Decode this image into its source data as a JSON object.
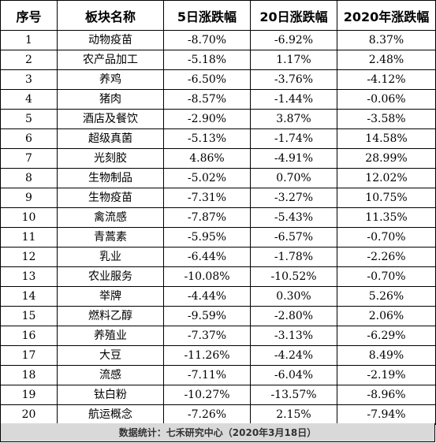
{
  "table": {
    "headers": [
      "序号",
      "板块名称",
      "5日涨跌幅",
      "20日涨跌幅",
      "2020年涨跌幅"
    ],
    "rows": [
      [
        "1",
        "动物疫苗",
        "-8.70%",
        "-6.92%",
        "8.37%"
      ],
      [
        "2",
        "农产品加工",
        "-5.18%",
        "1.17%",
        "2.48%"
      ],
      [
        "3",
        "养鸡",
        "-6.50%",
        "-3.76%",
        "-4.12%"
      ],
      [
        "4",
        "猪肉",
        "-8.57%",
        "-1.44%",
        "-0.06%"
      ],
      [
        "5",
        "酒店及餐饮",
        "-2.90%",
        "3.87%",
        "-3.58%"
      ],
      [
        "6",
        "超级真菌",
        "-5.13%",
        "-1.74%",
        "14.58%"
      ],
      [
        "7",
        "光刻胶",
        "4.86%",
        "-4.91%",
        "28.99%"
      ],
      [
        "8",
        "生物制品",
        "-5.02%",
        "0.70%",
        "12.02%"
      ],
      [
        "9",
        "生物疫苗",
        "-7.31%",
        "-3.27%",
        "10.75%"
      ],
      [
        "10",
        "禽流感",
        "-7.87%",
        "-5.43%",
        "11.35%"
      ],
      [
        "11",
        "青蒿素",
        "-5.95%",
        "-6.57%",
        "-0.70%"
      ],
      [
        "12",
        "乳业",
        "-6.44%",
        "-1.78%",
        "-2.26%"
      ],
      [
        "13",
        "农业服务",
        "-10.08%",
        "-10.52%",
        "-0.70%"
      ],
      [
        "14",
        "举牌",
        "-4.44%",
        "0.30%",
        "5.26%"
      ],
      [
        "15",
        "燃料乙醇",
        "-9.59%",
        "-2.80%",
        "2.06%"
      ],
      [
        "16",
        "养殖业",
        "-7.37%",
        "-3.13%",
        "-6.29%"
      ],
      [
        "17",
        "大豆",
        "-11.26%",
        "-4.24%",
        "8.49%"
      ],
      [
        "18",
        "流感",
        "-7.11%",
        "-6.04%",
        "-2.19%"
      ],
      [
        "19",
        "钛白粉",
        "-10.27%",
        "-13.57%",
        "-8.96%"
      ],
      [
        "20",
        "航运概念",
        "-7.26%",
        "2.15%",
        "-7.94%"
      ]
    ]
  },
  "footer": {
    "source": "数据统计：七禾研究中心（2020年3月18日）"
  }
}
